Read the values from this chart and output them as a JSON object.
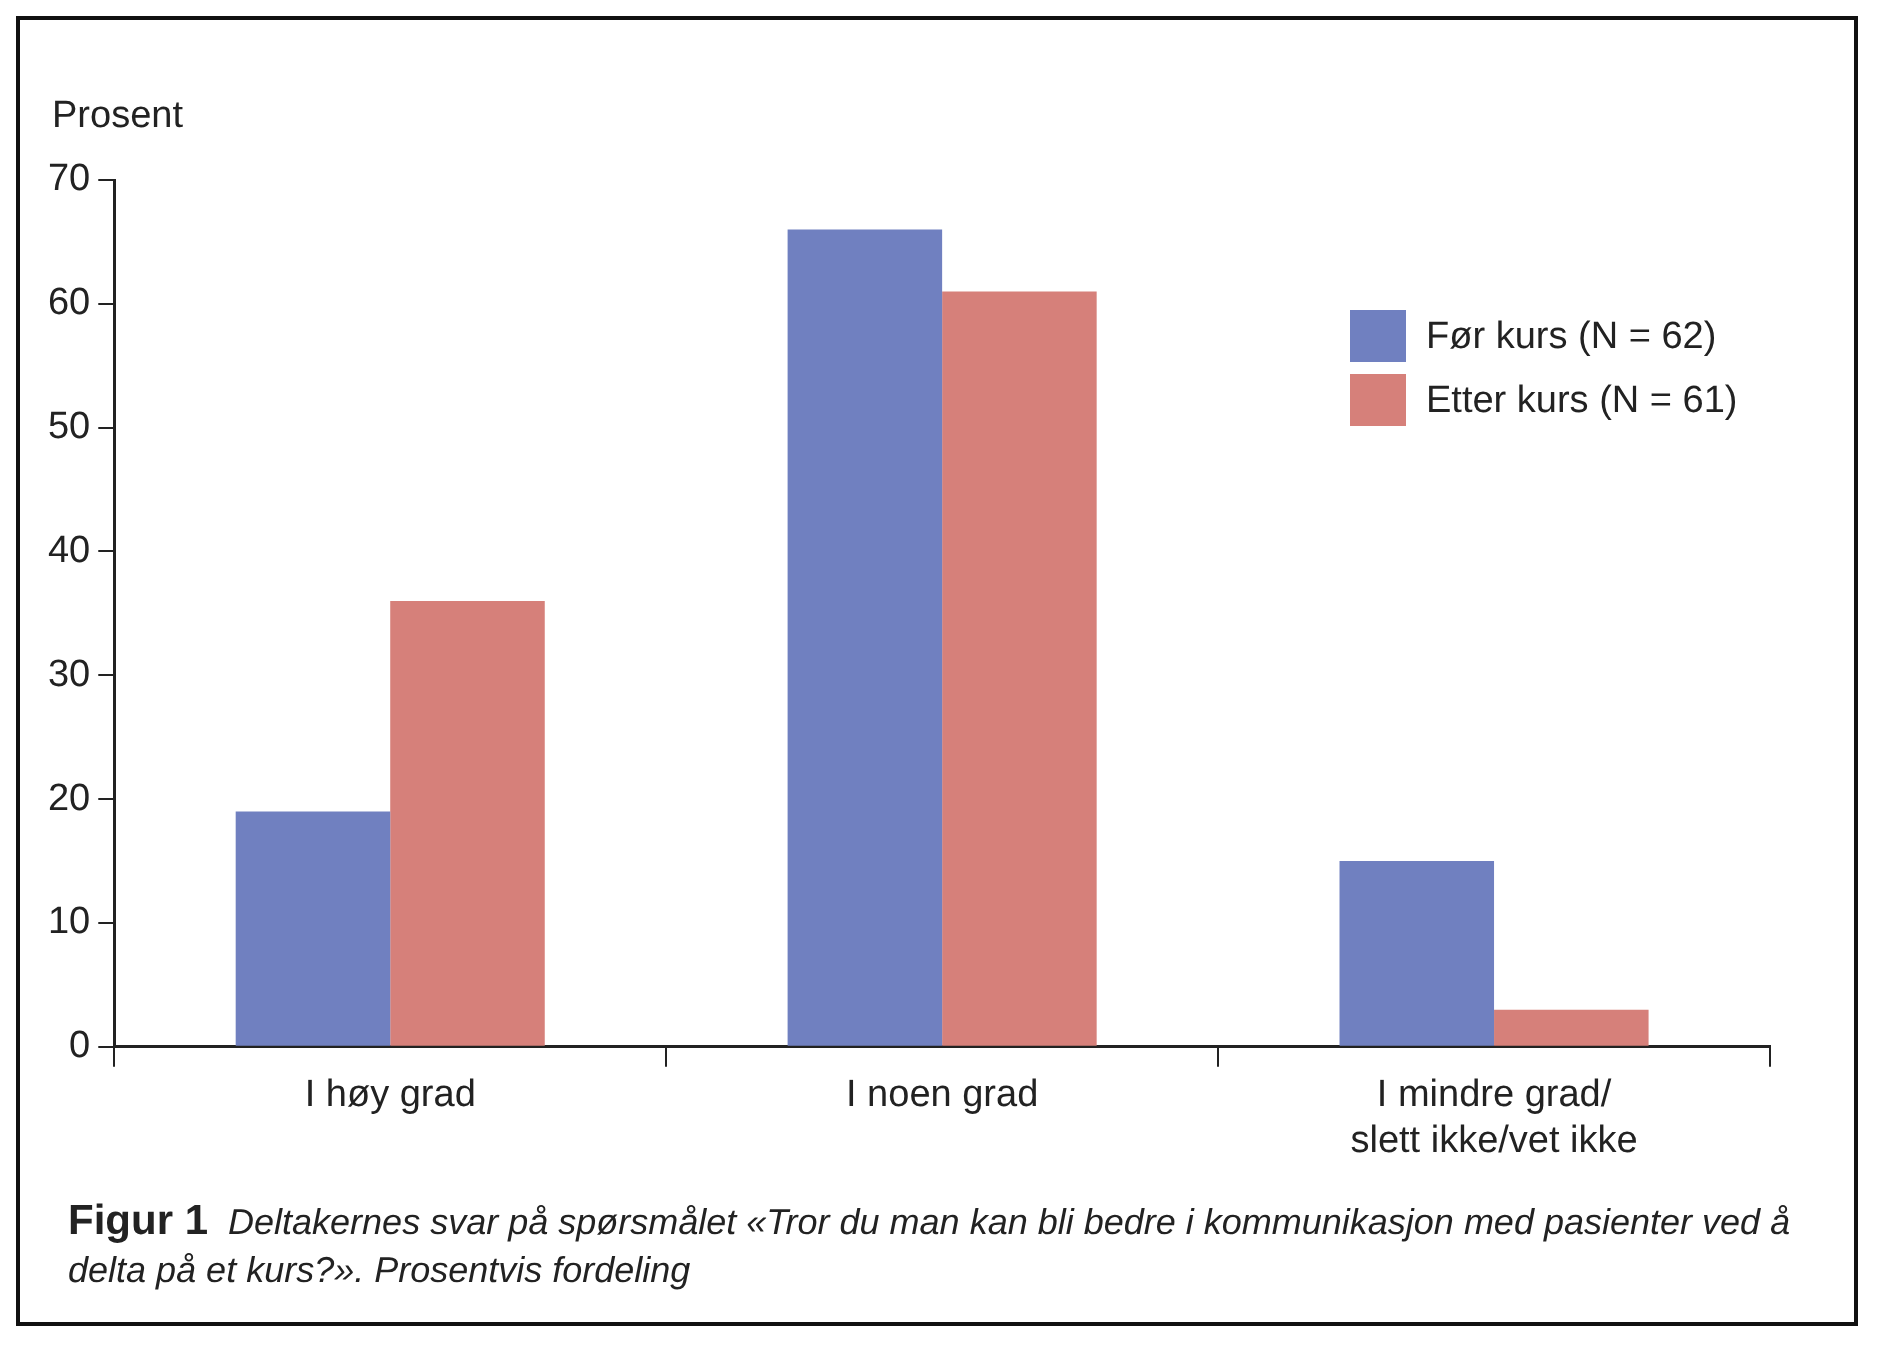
{
  "chart_data": {
    "type": "bar",
    "ylabel": "Prosent",
    "categories": [
      "I høy grad",
      "I noen grad",
      "I mindre grad/\nslett ikke/vet ikke"
    ],
    "series": [
      {
        "name": "Før kurs (N = 62)",
        "color": "#7080c0",
        "values": [
          19,
          66,
          15
        ]
      },
      {
        "name": "Etter kurs (N = 61)",
        "color": "#d6807a",
        "values": [
          36,
          61,
          3
        ]
      }
    ],
    "ylim": [
      0,
      70
    ],
    "yticks": [
      0,
      10,
      20,
      30,
      40,
      50,
      60,
      70
    ],
    "grid": false,
    "legend": "top right",
    "annotations": [
      "Figur 1",
      "Deltakernes svar på spørsmålet «Tror du man kan bli bedre i kommunikasjon med pasienter ved å delta på et kurs?». Prosentvis fordeling"
    ]
  }
}
